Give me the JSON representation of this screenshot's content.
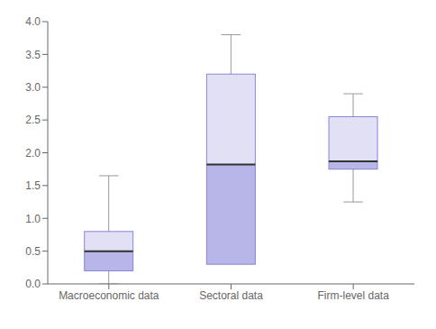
{
  "chart_data": {
    "type": "box",
    "categories": [
      "Macroeconomic data",
      "Sectoral data",
      "Firm-level data"
    ],
    "boxes": [
      {
        "whislo": 0.0,
        "q1": 0.2,
        "med": 0.5,
        "q3": 0.8,
        "whishi": 1.65
      },
      {
        "whislo": 0.3,
        "q1": 0.3,
        "med": 1.82,
        "q3": 3.2,
        "whishi": 3.8
      },
      {
        "whislo": 1.25,
        "q1": 1.75,
        "med": 1.87,
        "q3": 2.55,
        "whishi": 2.9
      }
    ],
    "ylim": [
      0.0,
      4.0
    ],
    "yticks": [
      {
        "value": 0,
        "label": "0.0"
      },
      0.5,
      {
        "value": 1,
        "label": "1.0"
      },
      1.5,
      {
        "value": 2,
        "label": "2.0"
      },
      2.5,
      {
        "value": 3,
        "label": "3.0"
      },
      3.5,
      {
        "value": 4,
        "label": "4.0"
      }
    ],
    "color": "#8884d8",
    "grid": false
  }
}
